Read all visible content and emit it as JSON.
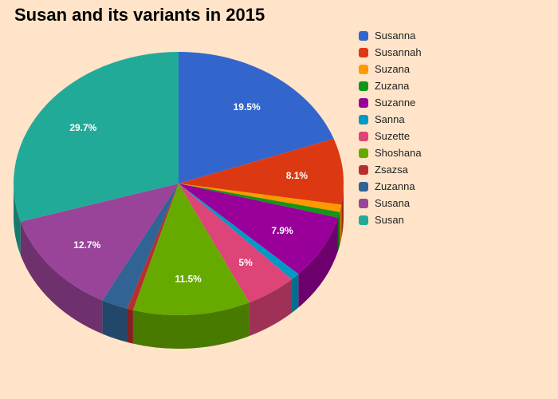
{
  "chart_data": {
    "type": "pie",
    "title": "Susan and its variants in 2015",
    "legend_position": "right",
    "slices": [
      {
        "name": "Susanna",
        "value": 19.5,
        "label": "19.5%",
        "color": "#3366cc"
      },
      {
        "name": "Susannah",
        "value": 8.1,
        "label": "8.1%",
        "color": "#dc3912"
      },
      {
        "name": "Suzana",
        "value": 0.9,
        "label": "",
        "color": "#ff9900"
      },
      {
        "name": "Zuzana",
        "value": 0.7,
        "label": "",
        "color": "#109618"
      },
      {
        "name": "Suzanne",
        "value": 7.9,
        "label": "7.9%",
        "color": "#990099"
      },
      {
        "name": "Sanna",
        "value": 0.9,
        "label": "",
        "color": "#0099c6"
      },
      {
        "name": "Suzette",
        "value": 5.0,
        "label": "5%",
        "color": "#dd4477"
      },
      {
        "name": "Shoshana",
        "value": 11.5,
        "label": "11.5%",
        "color": "#66aa00"
      },
      {
        "name": "Zsazsa",
        "value": 0.6,
        "label": "",
        "color": "#b82e2e"
      },
      {
        "name": "Zuzanna",
        "value": 2.6,
        "label": "",
        "color": "#316395"
      },
      {
        "name": "Susana",
        "value": 12.7,
        "label": "12.7%",
        "color": "#994499"
      },
      {
        "name": "Susan",
        "value": 29.7,
        "label": "29.7%",
        "color": "#22aa99"
      }
    ]
  }
}
